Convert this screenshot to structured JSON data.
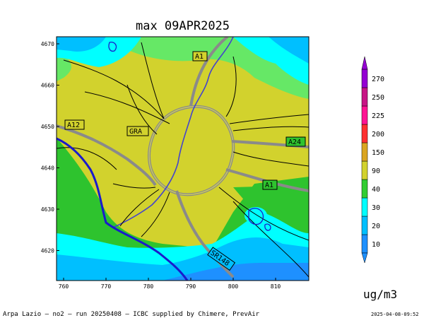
{
  "title": "max 09APR2025",
  "unit": "ug/m3",
  "footer": "Arpa Lazio — no2 — run 20250408 — ICBC supplied by Chimere, PrevAir",
  "timestamp": "2025-04-08-09:52",
  "x_ticks": [
    "760",
    "770",
    "780",
    "790",
    "800",
    "810"
  ],
  "y_ticks": [
    "4670",
    "4660",
    "4650",
    "4640",
    "4630",
    "4620"
  ],
  "road_labels": [
    "A1",
    "A12",
    "GRA",
    "A24",
    "A1",
    "SR148"
  ],
  "colorbar": {
    "levels": [
      "10",
      "20",
      "30",
      "40",
      "90",
      "150",
      "200",
      "225",
      "250",
      "270"
    ],
    "colors": [
      "#1e90ff",
      "#00bfff",
      "#00ffff",
      "#32cd32",
      "#d2d22d",
      "#daa520",
      "#ff3030",
      "#ff1493",
      "#c71585",
      "#9400d3"
    ]
  },
  "colors": {
    "yellow": "#d2d22d",
    "light_green": "#66e866",
    "green": "#2ec32e",
    "cyan": "#00ffff",
    "light_blue": "#00bfff",
    "blue": "#1e90ff",
    "roads": "#8a8a8a",
    "river": "#1a1acc"
  }
}
